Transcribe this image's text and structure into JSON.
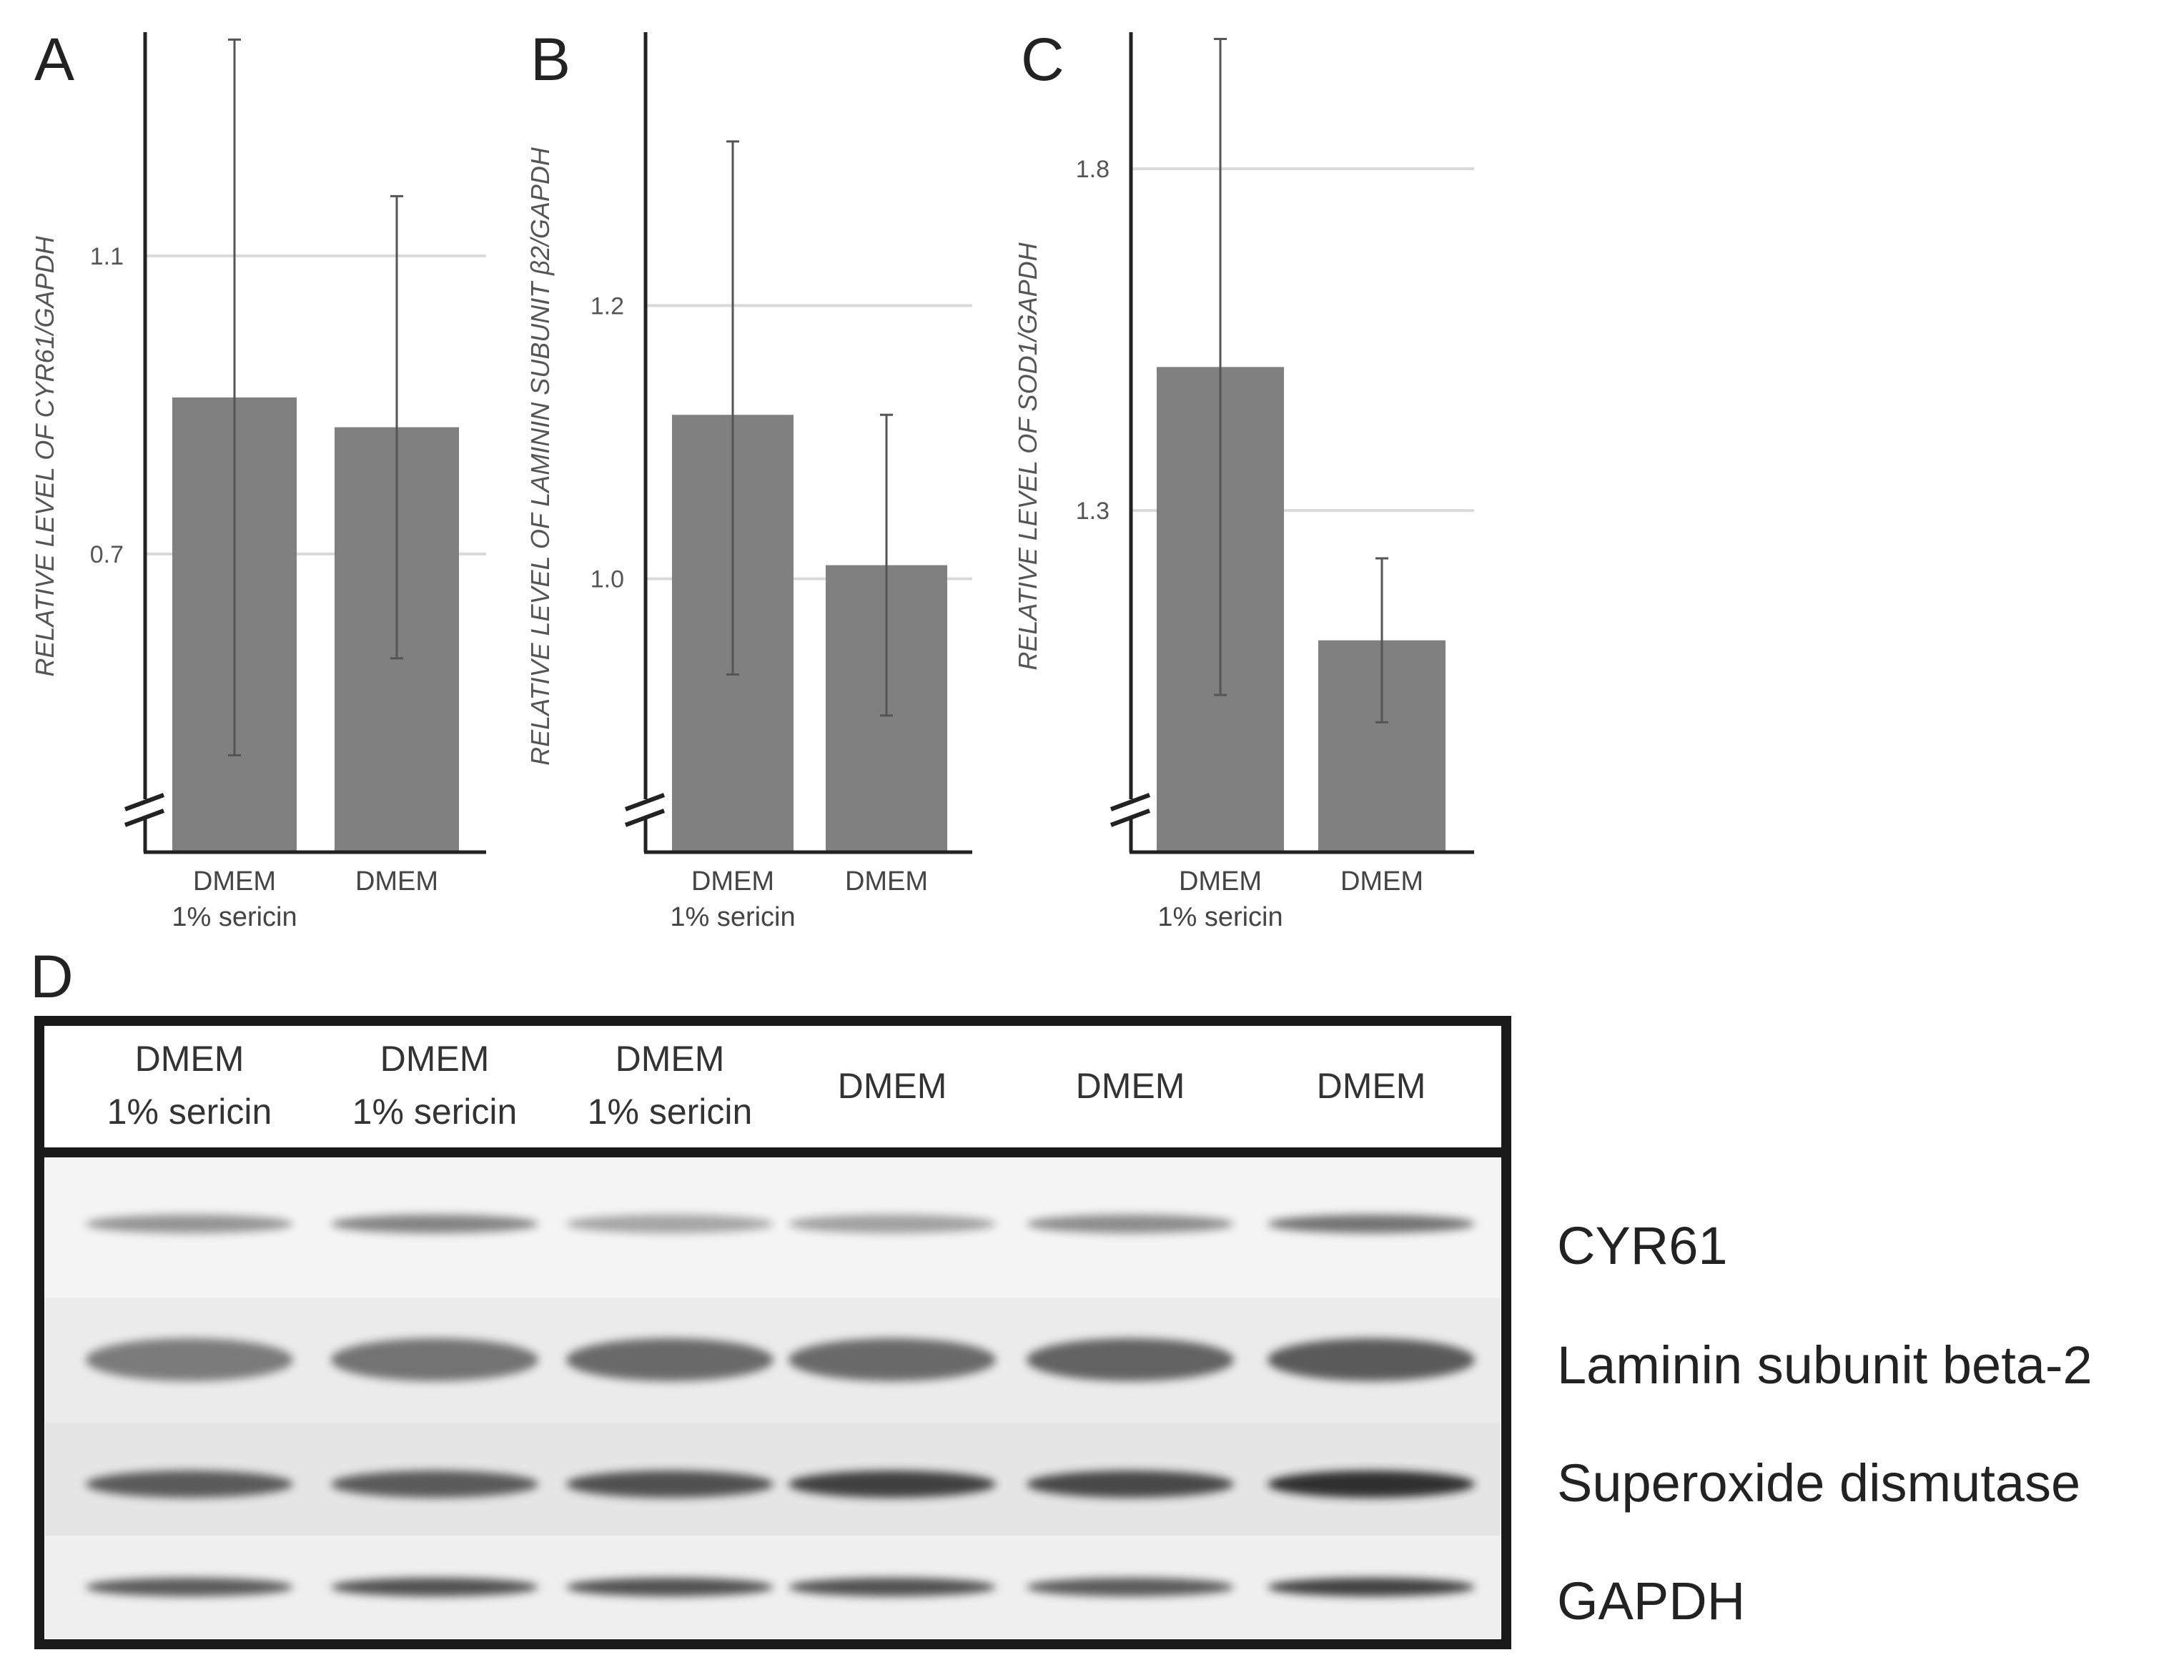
{
  "chart_data": [
    {
      "panel": "A",
      "type": "bar",
      "categories": [
        [
          "DMEM",
          "1% sericin"
        ],
        [
          "DMEM"
        ]
      ],
      "values": [
        0.91,
        0.87
      ],
      "error": [
        [
          0.43,
          1.39
        ],
        [
          0.56,
          1.18
        ]
      ],
      "ylabel": "RELATIVE LEVEL OF CYR61/GAPDH",
      "yticks": [
        0.7,
        1.1
      ],
      "ylim": [
        0.3,
        1.4
      ],
      "axis_break": true,
      "grid": true
    },
    {
      "panel": "B",
      "type": "bar",
      "categories": [
        [
          "DMEM",
          "1% sericin"
        ],
        [
          "DMEM"
        ]
      ],
      "values": [
        1.12,
        1.01
      ],
      "error": [
        [
          0.93,
          1.32
        ],
        [
          0.9,
          1.12
        ]
      ],
      "ylabel": "RELATIVE LEVEL OF LAMININ SUBUNIT β2/GAPDH",
      "yticks": [
        1.0,
        1.2
      ],
      "ylim": [
        0.8,
        1.4
      ],
      "axis_break": true,
      "grid": true
    },
    {
      "panel": "C",
      "type": "bar",
      "categories": [
        [
          "DMEM",
          "1% sericin"
        ],
        [
          "DMEM"
        ]
      ],
      "values": [
        1.51,
        1.11
      ],
      "error": [
        [
          1.03,
          1.99
        ],
        [
          0.99,
          1.23
        ]
      ],
      "ylabel": "RELATIVE LEVEL OF SOD1/GAPDH",
      "yticks": [
        1.3,
        1.8
      ],
      "ylim": [
        0.8,
        2.0
      ],
      "axis_break": true,
      "grid": true
    }
  ],
  "colors": {
    "bar": "#808080",
    "errorbar": "#555555",
    "grid": "#d9d9d9",
    "axis": "#222222"
  },
  "blot": {
    "panel": "D",
    "lanes": [
      [
        "DMEM",
        "1% sericin"
      ],
      [
        "DMEM",
        "1% sericin"
      ],
      [
        "DMEM",
        "1% sericin"
      ],
      [
        "DMEM"
      ],
      [
        "DMEM"
      ],
      [
        "DMEM"
      ]
    ],
    "proteins": [
      {
        "name": "CYR61",
        "intensity": [
          0.35,
          0.45,
          0.25,
          0.28,
          0.4,
          0.55
        ]
      },
      {
        "name": "Laminin subunit beta-2",
        "intensity": [
          0.5,
          0.55,
          0.6,
          0.6,
          0.65,
          0.7
        ]
      },
      {
        "name": "Superoxide dismutase",
        "intensity": [
          0.7,
          0.7,
          0.75,
          0.85,
          0.8,
          0.95
        ]
      },
      {
        "name": "GAPDH",
        "intensity": [
          0.7,
          0.75,
          0.75,
          0.75,
          0.7,
          0.85
        ]
      }
    ]
  }
}
